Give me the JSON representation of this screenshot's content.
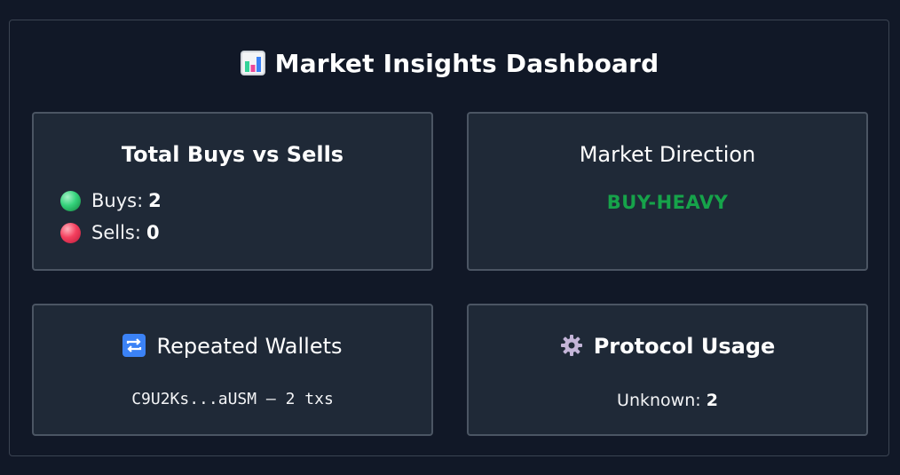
{
  "dashboard": {
    "title": "Market Insights Dashboard",
    "title_icon": "bar-chart-icon"
  },
  "buys_sells": {
    "title": "Total Buys vs Sells",
    "buys_label": "Buys:",
    "buys_value": "2",
    "sells_label": "Sells:",
    "sells_value": "0",
    "colors": {
      "buy": "#34d27b",
      "sell": "#f43f5e"
    }
  },
  "direction": {
    "title": "Market Direction",
    "value": "BUY-HEAVY",
    "color": "#16a34a"
  },
  "wallets": {
    "title": "Repeated Wallets",
    "icon": "repeat-icon",
    "entries": [
      {
        "text": "C9U2Ks...aUSM — 2 txs"
      }
    ]
  },
  "protocol": {
    "title": "Protocol Usage",
    "icon": "gear-icon",
    "label": "Unknown:",
    "value": "2"
  }
}
